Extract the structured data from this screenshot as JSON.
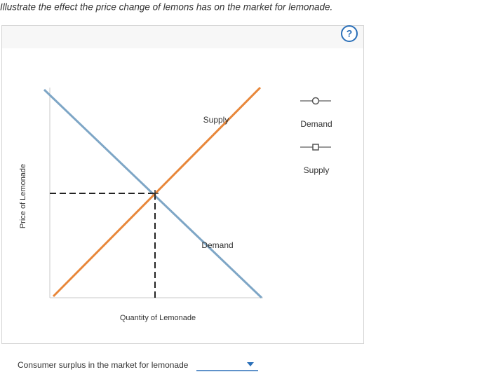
{
  "question": "Illustrate the effect the price change of lemons has on the market for lemonade.",
  "help": "?",
  "graph": {
    "y_axis_label": "Price of Lemonade",
    "x_axis_label": "Quantity of Lemonade",
    "curve_labels": [
      "Supply",
      "Demand"
    ]
  },
  "legend": [
    "Demand",
    "Supply"
  ],
  "prompt": "Consumer surplus in the market for lemonade"
}
